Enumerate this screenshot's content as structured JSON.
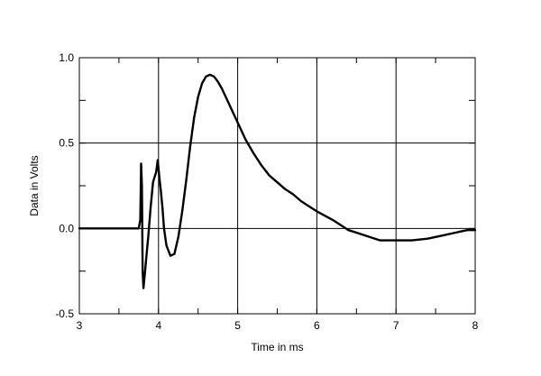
{
  "chart_data": {
    "type": "line",
    "title": "",
    "xlabel": "Time in ms",
    "ylabel": "Data in Volts",
    "xlim": [
      3,
      8
    ],
    "ylim": [
      -0.5,
      1.0
    ],
    "x_ticks": [
      3,
      4,
      5,
      6,
      7,
      8
    ],
    "x_tick_labels": [
      "3",
      "4",
      "5",
      "6",
      "7",
      "8"
    ],
    "y_ticks": [
      -0.5,
      0.0,
      0.5,
      1.0
    ],
    "y_tick_labels": [
      "-0.5",
      "0.0",
      "0.5",
      "1.0"
    ],
    "grid": true,
    "legend": "none",
    "series": [
      {
        "color": "#000000",
        "x": [
          3.0,
          3.5,
          3.75,
          3.77,
          3.78,
          3.79,
          3.8,
          3.81,
          3.82,
          3.83,
          3.85,
          3.87,
          3.9,
          3.93,
          3.95,
          3.97,
          3.99,
          4.01,
          4.03,
          4.05,
          4.07,
          4.1,
          4.15,
          4.2,
          4.25,
          4.3,
          4.35,
          4.4,
          4.45,
          4.5,
          4.55,
          4.6,
          4.65,
          4.7,
          4.75,
          4.8,
          4.85,
          4.9,
          4.95,
          5.0,
          5.1,
          5.2,
          5.3,
          5.4,
          5.5,
          5.6,
          5.7,
          5.8,
          5.9,
          6.0,
          6.2,
          6.4,
          6.6,
          6.8,
          7.0,
          7.2,
          7.4,
          7.6,
          7.7,
          7.8,
          7.9,
          8.0
        ],
        "y": [
          0.0,
          0.0,
          0.0,
          0.05,
          0.38,
          0.25,
          -0.25,
          -0.35,
          -0.3,
          -0.25,
          -0.15,
          -0.05,
          0.12,
          0.27,
          0.3,
          0.33,
          0.4,
          0.3,
          0.22,
          0.12,
          0.0,
          -0.1,
          -0.16,
          -0.15,
          -0.05,
          0.1,
          0.28,
          0.48,
          0.65,
          0.77,
          0.85,
          0.89,
          0.9,
          0.89,
          0.86,
          0.82,
          0.77,
          0.72,
          0.67,
          0.62,
          0.52,
          0.44,
          0.37,
          0.31,
          0.27,
          0.23,
          0.2,
          0.16,
          0.13,
          0.1,
          0.05,
          -0.01,
          -0.04,
          -0.07,
          -0.07,
          -0.07,
          -0.06,
          -0.04,
          -0.03,
          -0.02,
          -0.01,
          -0.01
        ]
      }
    ]
  }
}
